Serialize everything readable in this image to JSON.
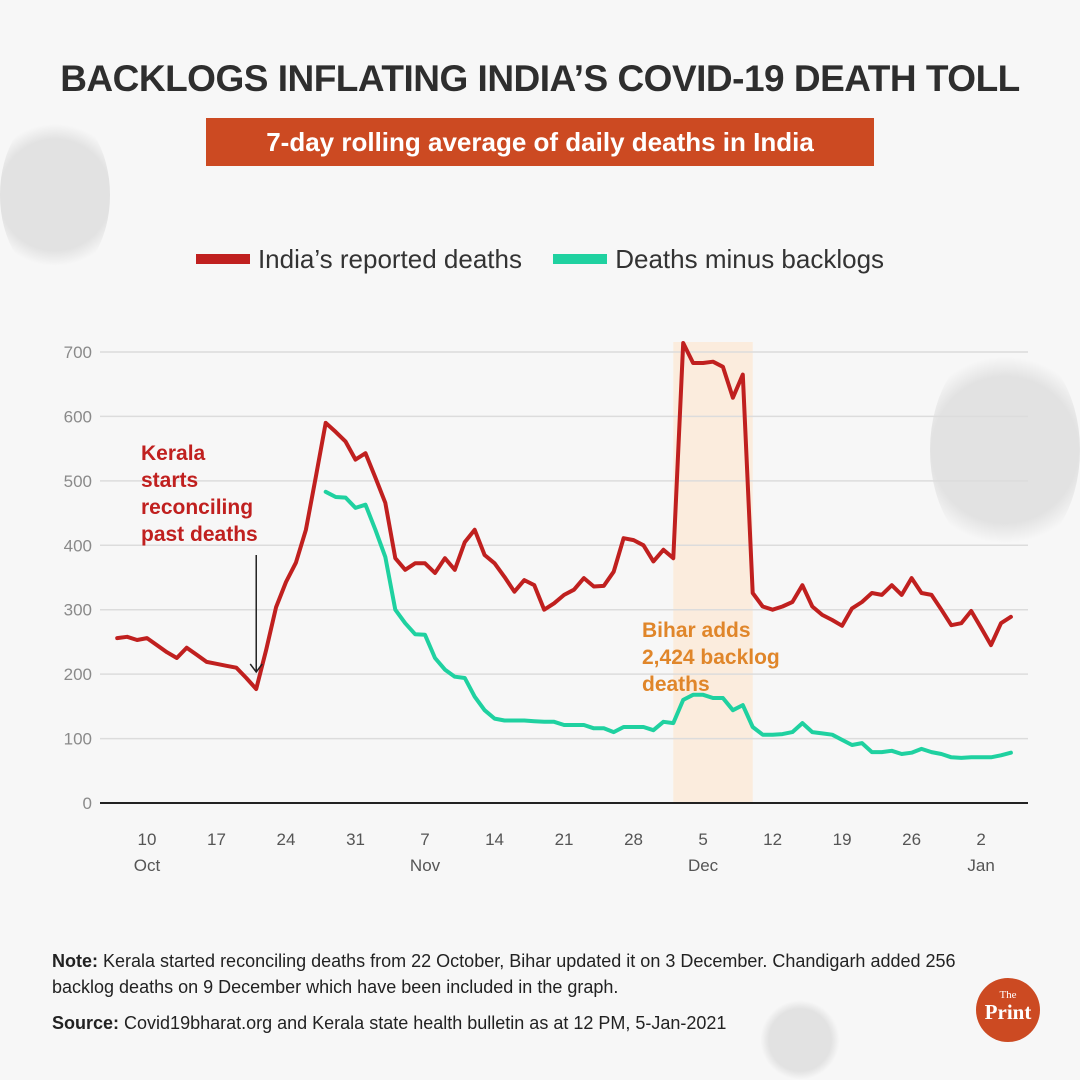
{
  "header": {
    "title": "BACKLOGS INFLATING INDIA’S COVID-19 DEATH TOLL",
    "subtitle": "7-day rolling average of daily deaths in India"
  },
  "chart_data": {
    "type": "line",
    "title": "7-day rolling average of daily deaths in India",
    "xlabel": "",
    "ylabel": "",
    "ylim": [
      0,
      700
    ],
    "yticks": [
      "0",
      "100",
      "200",
      "300",
      "400",
      "500",
      "600",
      "700"
    ],
    "xlim": [
      "2020-10-07",
      "2021-01-05"
    ],
    "xticks": [
      {
        "date": "2020-10-10",
        "label": "10",
        "month": "Oct"
      },
      {
        "date": "2020-10-17",
        "label": "17",
        "month": ""
      },
      {
        "date": "2020-10-24",
        "label": "24",
        "month": ""
      },
      {
        "date": "2020-10-31",
        "label": "31",
        "month": ""
      },
      {
        "date": "2020-11-07",
        "label": "7",
        "month": "Nov"
      },
      {
        "date": "2020-11-14",
        "label": "14",
        "month": ""
      },
      {
        "date": "2020-11-21",
        "label": "21",
        "month": ""
      },
      {
        "date": "2020-11-28",
        "label": "28",
        "month": ""
      },
      {
        "date": "2020-12-05",
        "label": "5",
        "month": "Dec"
      },
      {
        "date": "2020-12-12",
        "label": "12",
        "month": ""
      },
      {
        "date": "2020-12-19",
        "label": "19",
        "month": ""
      },
      {
        "date": "2020-12-26",
        "label": "26",
        "month": ""
      },
      {
        "date": "2021-01-02",
        "label": "2",
        "month": "Jan"
      }
    ],
    "grid": "horizontal",
    "legend_position": "top",
    "series": [
      {
        "name": "India’s reported deaths",
        "color": "#c0201f",
        "start": "2020-10-07",
        "frequency": "daily",
        "values": [
          256,
          258,
          253,
          256,
          245,
          234,
          225,
          241,
          230,
          219,
          216,
          213,
          210,
          194,
          177,
          238,
          304,
          343,
          373,
          424,
          506,
          590,
          576,
          561,
          533,
          543,
          505,
          466,
          380,
          362,
          372,
          372,
          357,
          380,
          362,
          405,
          424,
          385,
          372,
          351,
          328,
          346,
          338,
          300,
          310,
          323,
          331,
          349,
          336,
          337,
          359,
          411,
          408,
          400,
          375,
          393,
          380,
          714,
          683,
          683,
          685,
          677,
          629,
          665,
          326,
          305,
          300,
          305,
          312,
          338,
          305,
          292,
          284,
          275,
          302,
          312,
          326,
          323,
          338,
          323,
          349,
          326,
          323,
          300,
          276,
          279,
          298,
          272,
          245,
          279,
          289
        ]
      },
      {
        "name": "Deaths minus backlogs",
        "color": "#1fd1a0",
        "start": "2020-10-28",
        "frequency": "daily",
        "values": [
          483,
          475,
          474,
          458,
          463,
          424,
          382,
          300,
          279,
          262,
          261,
          225,
          207,
          196,
          194,
          165,
          144,
          131,
          128,
          128,
          128,
          127,
          126,
          126,
          121,
          121,
          121,
          116,
          116,
          110,
          118,
          118,
          118,
          113,
          126,
          124,
          160,
          168,
          168,
          163,
          163,
          144,
          152,
          118,
          106,
          106,
          107,
          110,
          124,
          110,
          108,
          106,
          98,
          90,
          93,
          79,
          79,
          81,
          76,
          78,
          84,
          79,
          76,
          71,
          70,
          71,
          71,
          71,
          74,
          78
        ]
      }
    ],
    "highlight_band": {
      "from": "2020-12-02",
      "to": "2020-12-10",
      "color": "#fbe9d6"
    },
    "annotations": [
      {
        "lines": [
          "Kerala",
          "starts",
          "reconciling",
          "past deaths"
        ],
        "color": "#c0201f",
        "arrow_to": "2020-10-21"
      },
      {
        "lines": [
          "Bihar adds",
          "2,424 backlog",
          "deaths"
        ],
        "color": "#e0862a"
      }
    ]
  },
  "footer": {
    "note_label": "Note:",
    "note_text": " Kerala started reconciling deaths from 22 October, Bihar updated it on 3 December. Chandigarh added 256 backlog deaths on 9 December which have been included in the graph.",
    "source_label": "Source:",
    "source_text": " Covid19bharat.org and Kerala state health bulletin as at 12 PM, 5-Jan-2021",
    "logo_the": "The",
    "logo_print": "Print"
  }
}
